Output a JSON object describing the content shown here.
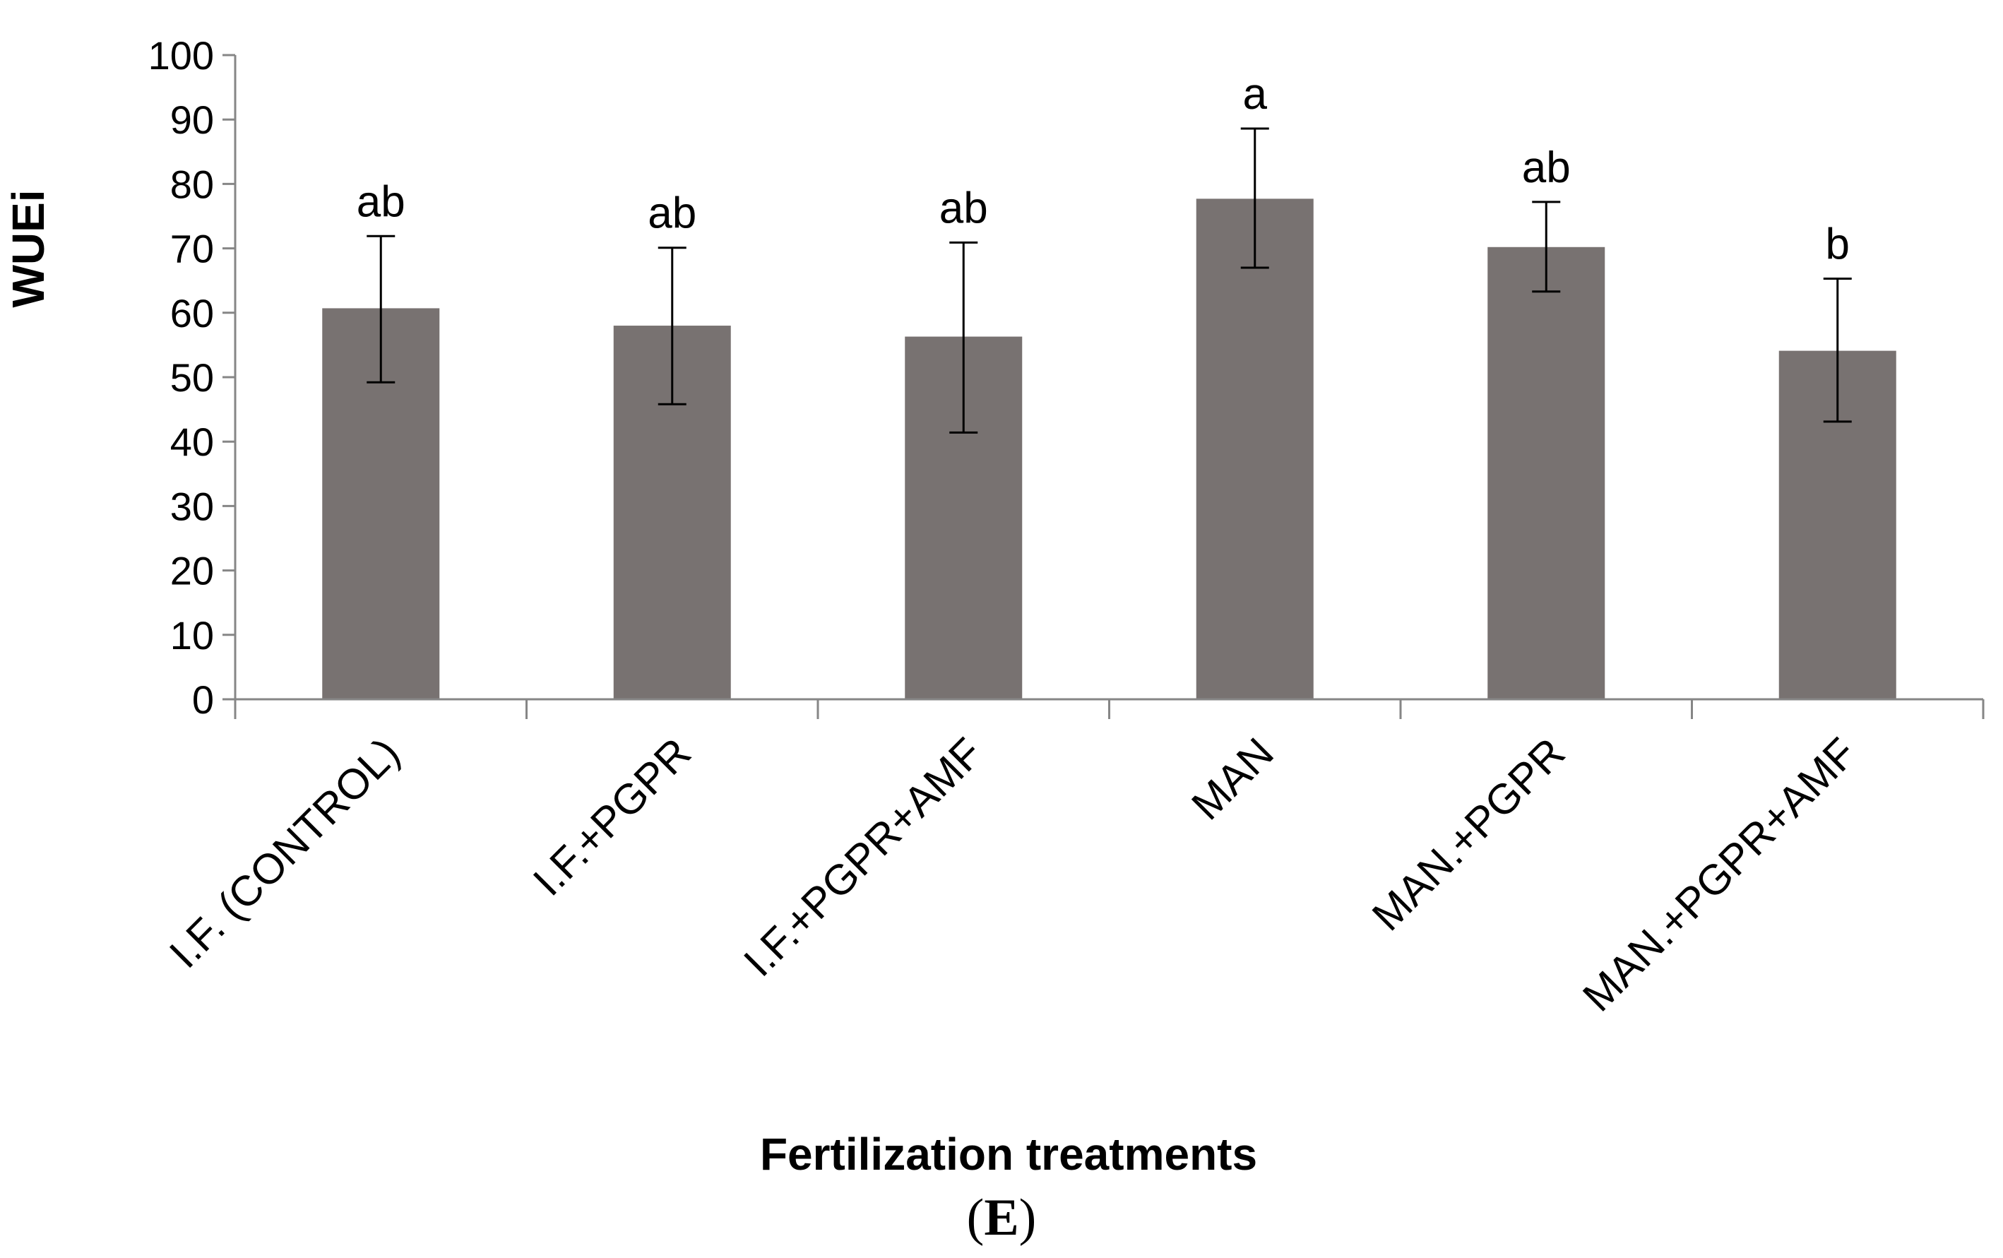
{
  "chart_data": {
    "type": "bar",
    "title": "",
    "xlabel": "Fertilization treatments",
    "ylabel": "WUEi",
    "ylim": [
      0,
      100
    ],
    "yticks": [
      0,
      10,
      20,
      30,
      40,
      50,
      60,
      70,
      80,
      90,
      100
    ],
    "categories": [
      "I.F. (CONTROL)",
      "I.F.+PGPR",
      "I.F.+PGPR+AMF",
      "MAN",
      "MAN.+PGPR",
      "MAN.+PGPR+AMF"
    ],
    "values": [
      60.7,
      58.0,
      56.3,
      77.7,
      70.2,
      54.1
    ],
    "error_lower": [
      49.2,
      45.8,
      41.4,
      67.0,
      63.3,
      43.1
    ],
    "error_upper": [
      71.9,
      70.1,
      70.9,
      88.6,
      77.2,
      65.3
    ],
    "significance_labels": [
      "ab",
      "ab",
      "ab",
      "a",
      "ab",
      "b"
    ],
    "bar_color": "#787271",
    "grid": false,
    "legend": "none"
  },
  "panel": {
    "open": "(",
    "letter": "E",
    "close": ")"
  }
}
